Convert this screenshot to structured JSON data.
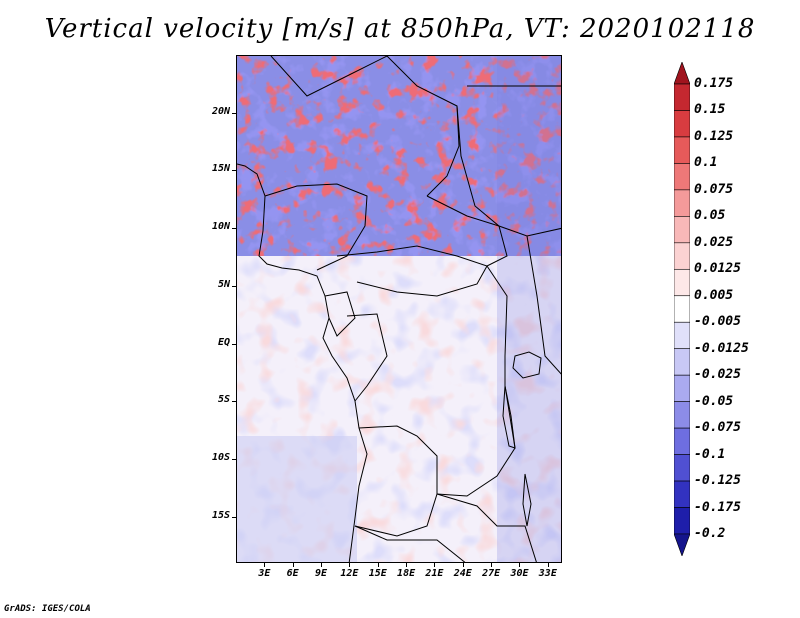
{
  "title": "Vertical velocity [m/s] at 850hPa, VT: 2020102118",
  "credit": "GrADS: IGES/COLA",
  "map": {
    "variable": "Vertical velocity",
    "units": "m/s",
    "level": "850hPa",
    "valid_time": "2020102118",
    "lat_range": [
      -19,
      25
    ],
    "lon_range": [
      0,
      34.5
    ],
    "lat_ticks": [
      {
        "value": 20,
        "label": "20N"
      },
      {
        "value": 15,
        "label": "15N"
      },
      {
        "value": 10,
        "label": "10N"
      },
      {
        "value": 5,
        "label": "5N"
      },
      {
        "value": 0,
        "label": "EQ"
      },
      {
        "value": -5,
        "label": "5S"
      },
      {
        "value": -10,
        "label": "10S"
      },
      {
        "value": -15,
        "label": "15S"
      }
    ],
    "lon_ticks": [
      {
        "value": 3,
        "label": "3E"
      },
      {
        "value": 6,
        "label": "6E"
      },
      {
        "value": 9,
        "label": "9E"
      },
      {
        "value": 12,
        "label": "12E"
      },
      {
        "value": 15,
        "label": "15E"
      },
      {
        "value": 18,
        "label": "18E"
      },
      {
        "value": 21,
        "label": "21E"
      },
      {
        "value": 24,
        "label": "24E"
      },
      {
        "value": 27,
        "label": "27E"
      },
      {
        "value": 30,
        "label": "30E"
      },
      {
        "value": 33,
        "label": "33E"
      }
    ],
    "colorbar": {
      "labels": [
        "0.175",
        "0.15",
        "0.125",
        "0.1",
        "0.075",
        "0.05",
        "0.025",
        "0.0125",
        "0.005",
        "-0.005",
        "-0.0125",
        "-0.025",
        "-0.05",
        "-0.075",
        "-0.1",
        "-0.125",
        "-0.175",
        "-0.2"
      ],
      "colors": [
        "#a0141e",
        "#c42830",
        "#d83c40",
        "#e65a5a",
        "#ee7878",
        "#f49a9a",
        "#f8b8b8",
        "#fbd2d2",
        "#fde8e8",
        "#ffffff",
        "#e0e0fa",
        "#c8c8f5",
        "#aaaaf0",
        "#8c8ce8",
        "#6e6ee0",
        "#5050d2",
        "#3232c0",
        "#1e1eaa",
        "#14148c"
      ]
    }
  }
}
